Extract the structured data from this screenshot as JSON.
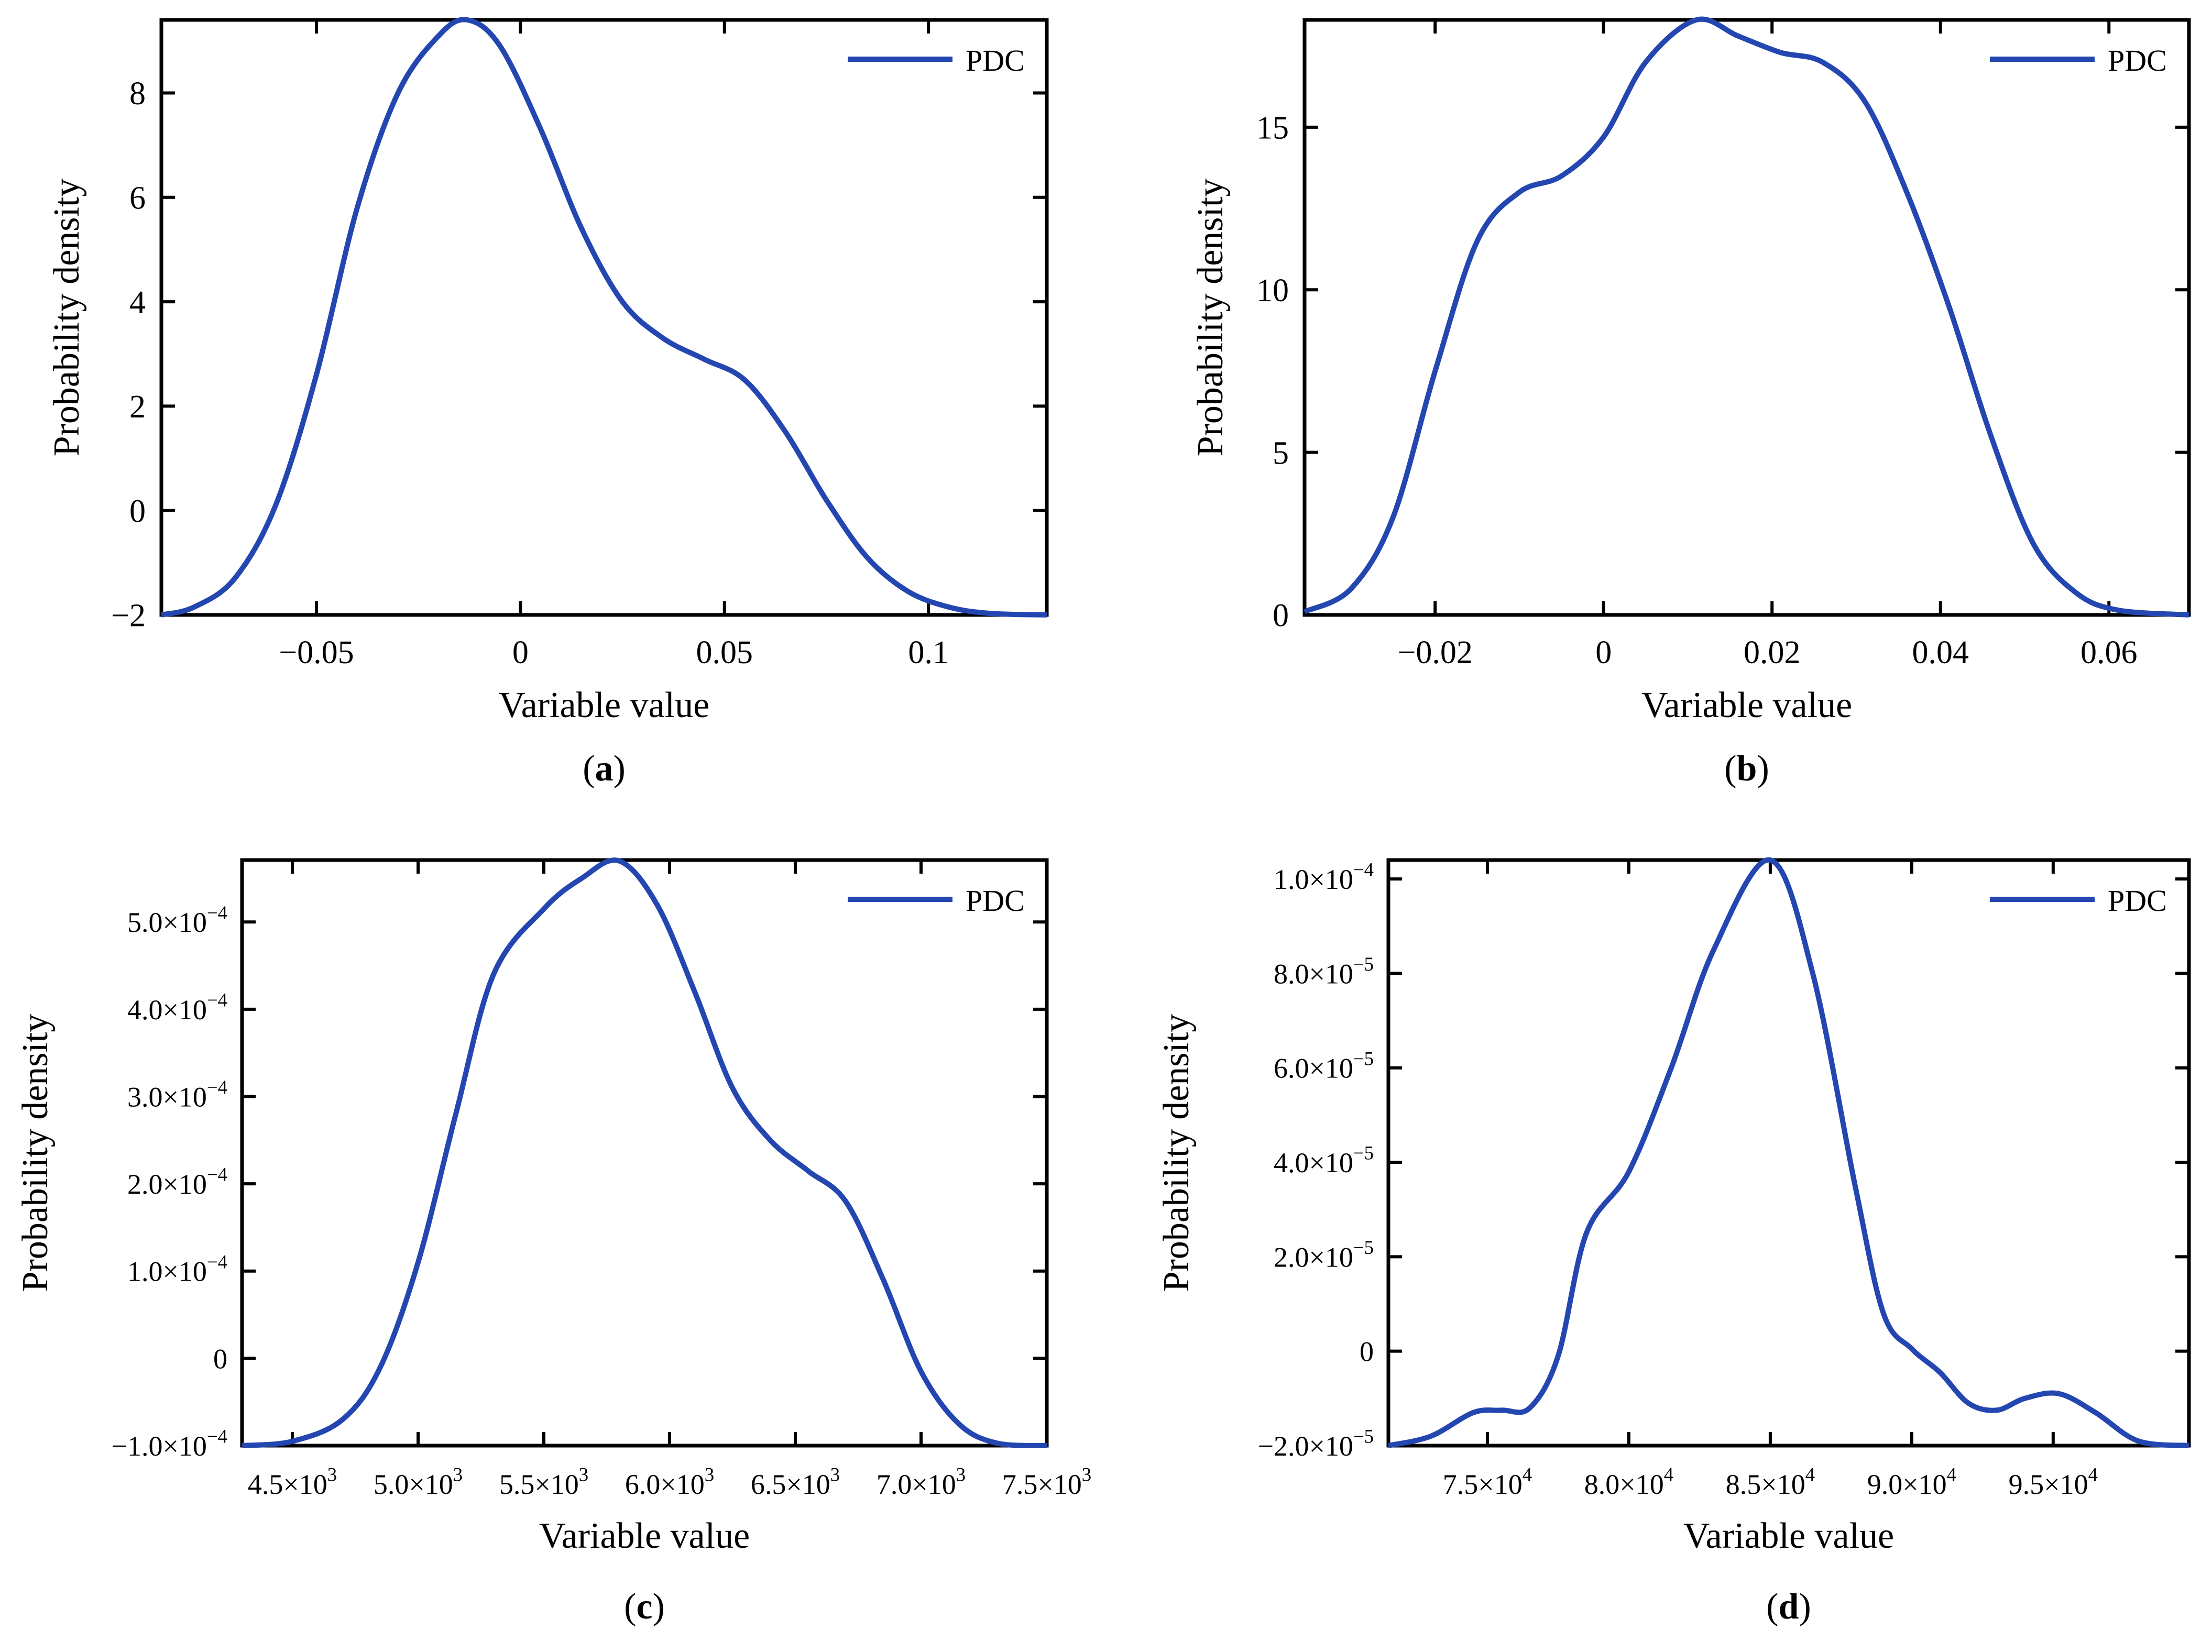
{
  "chart_data": [
    {
      "type": "line",
      "panel_label": "a",
      "xlabel": "Variable value",
      "ylabel": "Probability density",
      "legend": "PDC",
      "legend_position": "top-right",
      "color": "#2346b0",
      "xlim": [
        -0.088,
        0.129
      ],
      "ylim": [
        -2,
        9.4
      ],
      "xticks": [
        {
          "v": -0.05,
          "m": "−0.05"
        },
        {
          "v": 0,
          "m": "0"
        },
        {
          "v": 0.05,
          "m": "0.05"
        },
        {
          "v": 0.1,
          "m": "0.1"
        }
      ],
      "yticks": [
        {
          "v": -2,
          "m": "−2"
        },
        {
          "v": 0,
          "m": "0"
        },
        {
          "v": 2,
          "m": "2"
        },
        {
          "v": 4,
          "m": "4"
        },
        {
          "v": 6,
          "m": "6"
        },
        {
          "v": 8,
          "m": "8"
        }
      ],
      "series": [
        {
          "name": "PDC",
          "x": [
            -0.088,
            -0.08,
            -0.07,
            -0.06,
            -0.05,
            -0.04,
            -0.03,
            -0.02,
            -0.013,
            -0.005,
            0.005,
            0.015,
            0.025,
            0.035,
            0.045,
            0.055,
            0.065,
            0.075,
            0.085,
            0.095,
            0.105,
            0.115,
            0.129
          ],
          "y": [
            -2.0,
            -1.85,
            -1.3,
            0.1,
            2.6,
            5.8,
            8.0,
            9.1,
            9.4,
            8.9,
            7.3,
            5.4,
            4.0,
            3.3,
            2.9,
            2.5,
            1.5,
            0.2,
            -0.9,
            -1.55,
            -1.85,
            -1.97,
            -2.0
          ]
        }
      ]
    },
    {
      "type": "line",
      "panel_label": "b",
      "xlabel": "Variable value",
      "ylabel": "Probability density",
      "legend": "PDC",
      "legend_position": "top-right",
      "color": "#2346b0",
      "xlim": [
        -0.0355,
        0.0695
      ],
      "ylim": [
        0,
        18.3
      ],
      "xticks": [
        {
          "v": -0.02,
          "m": "−0.02"
        },
        {
          "v": 0,
          "m": "0"
        },
        {
          "v": 0.02,
          "m": "0.02"
        },
        {
          "v": 0.04,
          "m": "0.04"
        },
        {
          "v": 0.06,
          "m": "0.06"
        }
      ],
      "yticks": [
        {
          "v": 0,
          "m": "0"
        },
        {
          "v": 5,
          "m": "5"
        },
        {
          "v": 10,
          "m": "10"
        },
        {
          "v": 15,
          "m": "15"
        }
      ],
      "series": [
        {
          "name": "PDC",
          "x": [
            -0.0355,
            -0.03,
            -0.025,
            -0.02,
            -0.015,
            -0.01,
            -0.005,
            0,
            0.005,
            0.011,
            0.016,
            0.021,
            0.026,
            0.031,
            0.036,
            0.041,
            0.046,
            0.051,
            0.056,
            0.061,
            0.0695
          ],
          "y": [
            0.1,
            0.8,
            3.0,
            7.5,
            11.5,
            13.0,
            13.5,
            14.7,
            17.0,
            18.3,
            17.8,
            17.3,
            17.0,
            15.8,
            13.0,
            9.5,
            5.5,
            2.2,
            0.7,
            0.15,
            0.0
          ]
        }
      ]
    },
    {
      "type": "line",
      "panel_label": "c",
      "xlabel": "Variable value",
      "ylabel": "Probability density",
      "legend": "PDC",
      "legend_position": "top-right",
      "color": "#2346b0",
      "xlim": [
        4300,
        7500
      ],
      "ylim": [
        -0.0001,
        0.000571
      ],
      "xticks": [
        {
          "v": 4500,
          "m": "4.5×10",
          "e": "3"
        },
        {
          "v": 5000,
          "m": "5.0×10",
          "e": "3"
        },
        {
          "v": 5500,
          "m": "5.5×10",
          "e": "3"
        },
        {
          "v": 6000,
          "m": "6.0×10",
          "e": "3"
        },
        {
          "v": 6500,
          "m": "6.5×10",
          "e": "3"
        },
        {
          "v": 7000,
          "m": "7.0×10",
          "e": "3"
        },
        {
          "v": 7500,
          "m": "7.5×10",
          "e": "3"
        }
      ],
      "yticks": [
        {
          "v": -0.0001,
          "m": "−1.0×10",
          "e": "−4"
        },
        {
          "v": 0,
          "m": "0"
        },
        {
          "v": 0.0001,
          "m": "1.0×10",
          "e": "−4"
        },
        {
          "v": 0.0002,
          "m": "2.0×10",
          "e": "−4"
        },
        {
          "v": 0.0003,
          "m": "3.0×10",
          "e": "−4"
        },
        {
          "v": 0.0004,
          "m": "4.0×10",
          "e": "−4"
        },
        {
          "v": 0.0005,
          "m": "5.0×10",
          "e": "−4"
        }
      ],
      "series": [
        {
          "name": "PDC",
          "x": [
            4300,
            4500,
            4700,
            4850,
            5000,
            5150,
            5300,
            5500,
            5650,
            5800,
            5950,
            6100,
            6250,
            6400,
            6550,
            6700,
            6850,
            7000,
            7150,
            7300,
            7500
          ],
          "y": [
            -0.0001,
            -9.5e-05,
            -7e-05,
            -1e-05,
            0.00011,
            0.00028,
            0.00044,
            0.000515,
            0.00055,
            0.00057,
            0.00052,
            0.00042,
            0.00031,
            0.00025,
            0.000215,
            0.00018,
            9e-05,
            -1.5e-05,
            -7.5e-05,
            -9.7e-05,
            -0.0001
          ]
        }
      ]
    },
    {
      "type": "line",
      "panel_label": "d",
      "xlabel": "Variable value",
      "ylabel": "Probability density",
      "legend": "PDC",
      "legend_position": "top-right",
      "color": "#2346b0",
      "xlim": [
        71500,
        99800
      ],
      "ylim": [
        -2e-05,
        0.000104
      ],
      "xticks": [
        {
          "v": 75000,
          "m": "7.5×10",
          "e": "4"
        },
        {
          "v": 80000,
          "m": "8.0×10",
          "e": "4"
        },
        {
          "v": 85000,
          "m": "8.5×10",
          "e": "4"
        },
        {
          "v": 90000,
          "m": "9.0×10",
          "e": "4"
        },
        {
          "v": 95000,
          "m": "9.5×10",
          "e": "4"
        }
      ],
      "yticks": [
        {
          "v": -2e-05,
          "m": "−2.0×10",
          "e": "−5"
        },
        {
          "v": 0,
          "m": "0"
        },
        {
          "v": 2e-05,
          "m": "2.0×10",
          "e": "−5"
        },
        {
          "v": 4e-05,
          "m": "4.0×10",
          "e": "−5"
        },
        {
          "v": 6e-05,
          "m": "6.0×10",
          "e": "−5"
        },
        {
          "v": 8e-05,
          "m": "8.0×10",
          "e": "−5"
        },
        {
          "v": 0.0001,
          "m": "1.0×10",
          "e": "−4"
        }
      ],
      "series": [
        {
          "name": "PDC",
          "x": [
            71500,
            73000,
            74500,
            75500,
            76500,
            77500,
            78500,
            80000,
            81500,
            83000,
            85000,
            86500,
            88000,
            89000,
            90000,
            91000,
            92000,
            93000,
            94000,
            95200,
            96500,
            98000,
            99800
          ],
          "y": [
            -2e-05,
            -1.8e-05,
            -1.3e-05,
            -1.25e-05,
            -1.2e-05,
            -1e-06,
            2.5e-05,
            3.8e-05,
            6e-05,
            8.5e-05,
            0.000104,
            8e-05,
            3.5e-05,
            8e-06,
            5e-07,
            -4.5e-06,
            -1.1e-05,
            -1.25e-05,
            -1e-05,
            -9e-06,
            -1.3e-05,
            -1.9e-05,
            -2e-05
          ]
        }
      ]
    }
  ]
}
